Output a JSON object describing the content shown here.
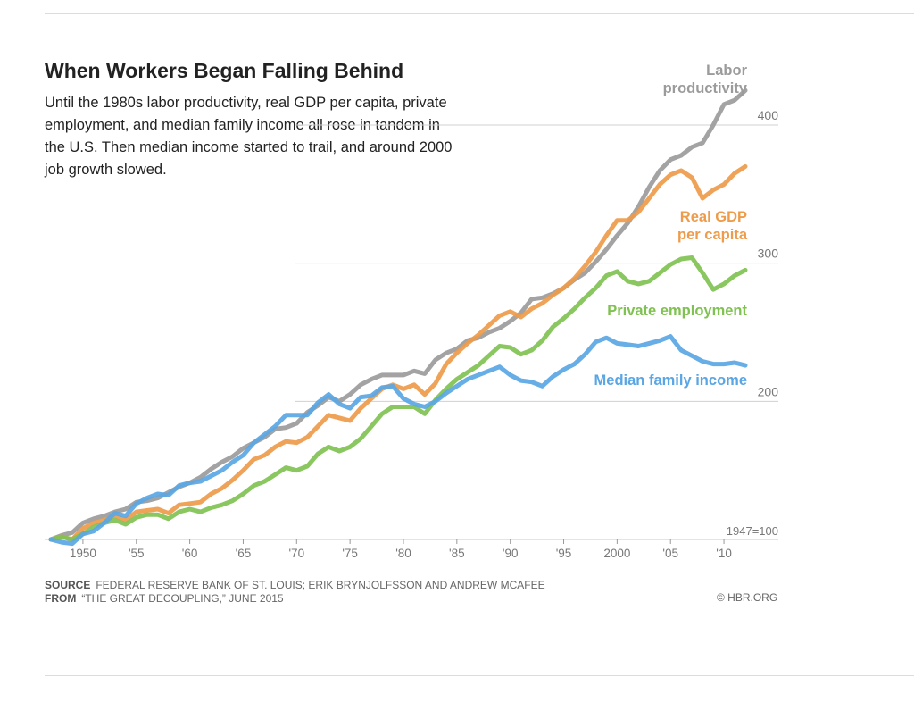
{
  "header": {
    "title": "When Workers Began Falling Behind",
    "subtitle": "Until the 1980s labor productivity, real GDP per capita, private employment, and median family income all rose in tandem in the U.S. Then median income started to trail, and around 2000 job growth slowed."
  },
  "footer": {
    "source_label": "SOURCE",
    "source_text": "FEDERAL RESERVE BANK OF ST. LOUIS; ERIK BRYNJOLFSSON AND ANDREW MCAFEE",
    "from_label": "FROM",
    "from_text": "“THE GREAT DECOUPLING,” JUNE 2015",
    "credit": "© HBR.ORG"
  },
  "chart_data": {
    "type": "line",
    "title": "When Workers Began Falling Behind",
    "xlabel": "",
    "ylabel": "",
    "xlim": [
      1947,
      2013
    ],
    "ylim": [
      100,
      430
    ],
    "x_ticks": [
      1950,
      1955,
      1960,
      1965,
      1970,
      1975,
      1980,
      1985,
      1990,
      1995,
      2000,
      2005,
      2010
    ],
    "x_tick_labels": [
      "1950",
      "'55",
      "'60",
      "'65",
      "'70",
      "'75",
      "'80",
      "'85",
      "'90",
      "'95",
      "2000",
      "'05",
      "'10"
    ],
    "y_gridlines": [
      200,
      300,
      400
    ],
    "y_tick_labels": [
      "200",
      "300",
      "400"
    ],
    "baseline_label": "1947=100",
    "grid": true,
    "series": [
      {
        "name": "Labor productivity",
        "label_lines": [
          "Labor",
          "productivity"
        ],
        "color": "#9b9b9b",
        "x": [
          1947,
          1948,
          1949,
          1950,
          1951,
          1952,
          1953,
          1954,
          1955,
          1956,
          1957,
          1958,
          1959,
          1960,
          1961,
          1962,
          1963,
          1964,
          1965,
          1966,
          1967,
          1968,
          1969,
          1970,
          1971,
          1972,
          1973,
          1974,
          1975,
          1976,
          1977,
          1978,
          1979,
          1980,
          1981,
          1982,
          1983,
          1984,
          1985,
          1986,
          1987,
          1988,
          1989,
          1990,
          1991,
          1992,
          1993,
          1994,
          1995,
          1996,
          1997,
          1998,
          1999,
          2000,
          2001,
          2002,
          2003,
          2004,
          2005,
          2006,
          2007,
          2008,
          2009,
          2010,
          2011,
          2012
        ],
        "values": [
          100,
          103,
          105,
          112,
          115,
          117,
          120,
          122,
          127,
          128,
          130,
          134,
          138,
          141,
          145,
          151,
          156,
          160,
          166,
          170,
          174,
          180,
          181,
          184,
          192,
          197,
          203,
          200,
          205,
          212,
          216,
          219,
          219,
          219,
          222,
          220,
          230,
          235,
          238,
          244,
          246,
          250,
          253,
          258,
          264,
          274,
          275,
          278,
          282,
          288,
          293,
          301,
          310,
          320,
          329,
          341,
          355,
          367,
          375,
          378,
          384,
          387,
          400,
          415,
          418,
          425
        ]
      },
      {
        "name": "Real GDP per capita",
        "label_lines": [
          "Real GDP",
          "per capita"
        ],
        "color": "#ee9b4a",
        "x": [
          1947,
          1948,
          1949,
          1950,
          1951,
          1952,
          1953,
          1954,
          1955,
          1956,
          1957,
          1958,
          1959,
          1960,
          1961,
          1962,
          1963,
          1964,
          1965,
          1966,
          1967,
          1968,
          1969,
          1970,
          1971,
          1972,
          1973,
          1974,
          1975,
          1976,
          1977,
          1978,
          1979,
          1980,
          1981,
          1982,
          1983,
          1984,
          1985,
          1986,
          1987,
          1988,
          1989,
          1990,
          1991,
          1992,
          1993,
          1994,
          1995,
          1996,
          1997,
          1998,
          1999,
          2000,
          2001,
          2002,
          2003,
          2004,
          2005,
          2006,
          2007,
          2008,
          2009,
          2010,
          2011,
          2012
        ],
        "values": [
          100,
          102,
          100,
          108,
          112,
          114,
          117,
          114,
          120,
          121,
          122,
          119,
          125,
          126,
          127,
          133,
          137,
          143,
          150,
          158,
          161,
          167,
          171,
          170,
          174,
          182,
          190,
          188,
          186,
          195,
          202,
          209,
          212,
          209,
          212,
          205,
          213,
          227,
          235,
          242,
          248,
          255,
          262,
          265,
          261,
          267,
          271,
          277,
          282,
          289,
          298,
          308,
          320,
          331,
          331,
          337,
          347,
          357,
          364,
          367,
          362,
          347,
          353,
          357,
          365,
          370
        ]
      },
      {
        "name": "Private employment",
        "label_lines": [
          "Private employment"
        ],
        "color": "#80c252",
        "x": [
          1947,
          1948,
          1949,
          1950,
          1951,
          1952,
          1953,
          1954,
          1955,
          1956,
          1957,
          1958,
          1959,
          1960,
          1961,
          1962,
          1963,
          1964,
          1965,
          1966,
          1967,
          1968,
          1969,
          1970,
          1971,
          1972,
          1973,
          1974,
          1975,
          1976,
          1977,
          1978,
          1979,
          1980,
          1981,
          1982,
          1983,
          1984,
          1985,
          1986,
          1987,
          1988,
          1989,
          1990,
          1991,
          1992,
          1993,
          1994,
          1995,
          1996,
          1997,
          1998,
          1999,
          2000,
          2001,
          2002,
          2003,
          2004,
          2005,
          2006,
          2007,
          2008,
          2009,
          2010,
          2011,
          2012
        ],
        "values": [
          100,
          102,
          100,
          104,
          109,
          112,
          114,
          111,
          116,
          118,
          118,
          115,
          120,
          122,
          120,
          123,
          125,
          128,
          133,
          139,
          142,
          147,
          152,
          150,
          153,
          162,
          167,
          164,
          167,
          173,
          182,
          191,
          196,
          196,
          196,
          191,
          201,
          209,
          216,
          221,
          226,
          233,
          240,
          239,
          234,
          237,
          244,
          254,
          260,
          267,
          275,
          282,
          291,
          294,
          287,
          285,
          287,
          293,
          299,
          303,
          304,
          293,
          281,
          285,
          291,
          295
        ]
      },
      {
        "name": "Median family income",
        "label_lines": [
          "Median family income"
        ],
        "color": "#5aa6e4",
        "x": [
          1947,
          1948,
          1949,
          1950,
          1951,
          1952,
          1953,
          1954,
          1955,
          1956,
          1957,
          1958,
          1959,
          1960,
          1961,
          1962,
          1963,
          1964,
          1965,
          1966,
          1967,
          1968,
          1969,
          1970,
          1971,
          1972,
          1973,
          1974,
          1975,
          1976,
          1977,
          1978,
          1979,
          1980,
          1981,
          1982,
          1983,
          1984,
          1985,
          1986,
          1987,
          1988,
          1989,
          1990,
          1991,
          1992,
          1993,
          1994,
          1995,
          1996,
          1997,
          1998,
          1999,
          2000,
          2001,
          2002,
          2003,
          2004,
          2005,
          2006,
          2007,
          2008,
          2009,
          2010,
          2011,
          2012
        ],
        "values": [
          100,
          98,
          97,
          104,
          106,
          112,
          119,
          117,
          126,
          130,
          133,
          132,
          139,
          141,
          142,
          146,
          150,
          156,
          161,
          170,
          176,
          182,
          190,
          190,
          190,
          199,
          205,
          198,
          195,
          203,
          204,
          210,
          211,
          202,
          198,
          196,
          200,
          206,
          211,
          216,
          219,
          222,
          225,
          219,
          215,
          214,
          211,
          218,
          223,
          227,
          234,
          243,
          246,
          242,
          241,
          240,
          242,
          244,
          247,
          237,
          233,
          229,
          227,
          227,
          228,
          226
        ]
      }
    ]
  }
}
